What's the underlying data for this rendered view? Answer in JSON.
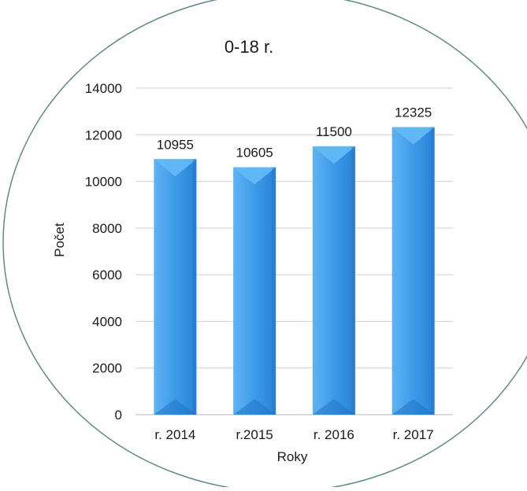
{
  "chart_data": {
    "type": "bar",
    "title": "0-18 r.",
    "xlabel": "Roky",
    "ylabel": "Počet",
    "categories": [
      "r. 2014",
      "r.2015",
      "r. 2016",
      "r. 2017"
    ],
    "values": [
      10955,
      10605,
      11500,
      12325
    ],
    "data_labels": [
      "10955",
      "10605",
      "11500",
      "12325"
    ],
    "ylim": [
      0,
      14000
    ],
    "yticks": [
      0,
      2000,
      4000,
      6000,
      8000,
      10000,
      12000,
      14000
    ],
    "ytick_labels": [
      "0",
      "2000",
      "4000",
      "6000",
      "8000",
      "10000",
      "12000",
      "14000"
    ],
    "grid": true,
    "legend": "none",
    "colors": {
      "bar": "#3d9ae8",
      "bar_light": "#62b8f6",
      "bar_dark": "#1f74c8",
      "frame": "#5e8a8f",
      "grid": "#cfcfcf"
    }
  }
}
